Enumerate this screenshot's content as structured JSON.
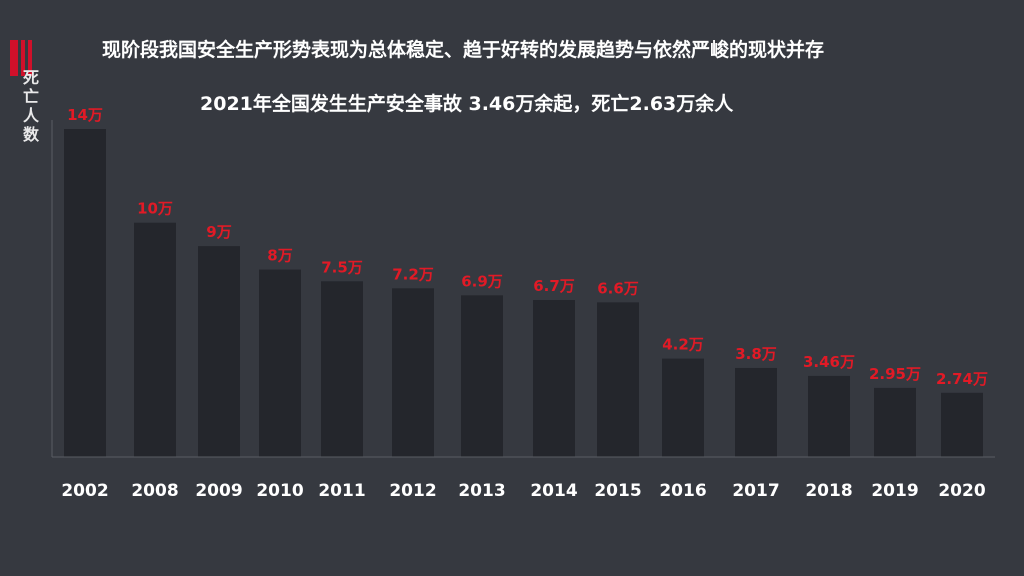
{
  "header": {
    "title": "现阶段我国安全生产形势表现为总体稳定、趋于好转的发展趋势与依然严峻的现状并存",
    "subtitle": "2021年全国发生生产安全事故 3.46万余起，死亡2.63万余人"
  },
  "colors": {
    "background": "#363940",
    "bar": "#24262c",
    "value_label": "#e11a26",
    "axis_text": "#ffffff",
    "accent": "#d0102a"
  },
  "chart_data": {
    "type": "bar",
    "title": "现阶段我国安全生产形势表现为总体稳定、趋于好转的发展趋势与依然严峻的现状并存",
    "subtitle": "2021年全国发生生产安全事故 3.46万余起，死亡2.63万余人",
    "xlabel": "",
    "ylabel": "死亡人数",
    "categories": [
      "2002",
      "2008",
      "2009",
      "2010",
      "2011",
      "2012",
      "2013",
      "2014",
      "2015",
      "2016",
      "2017",
      "2018",
      "2019",
      "2020"
    ],
    "values": [
      14,
      10,
      9,
      8,
      7.5,
      7.2,
      6.9,
      6.7,
      6.6,
      4.2,
      3.8,
      3.46,
      2.95,
      2.74
    ],
    "value_labels": [
      "14万",
      "10万",
      "9万",
      "8万",
      "7.5万",
      "7.2万",
      "6.9万",
      "6.7万",
      "6.6万",
      "4.2万",
      "3.8万",
      "3.46万",
      "2.95万",
      "2.74万"
    ],
    "unit": "万",
    "ylim": [
      0,
      14
    ],
    "grid": false,
    "legend": "none"
  }
}
